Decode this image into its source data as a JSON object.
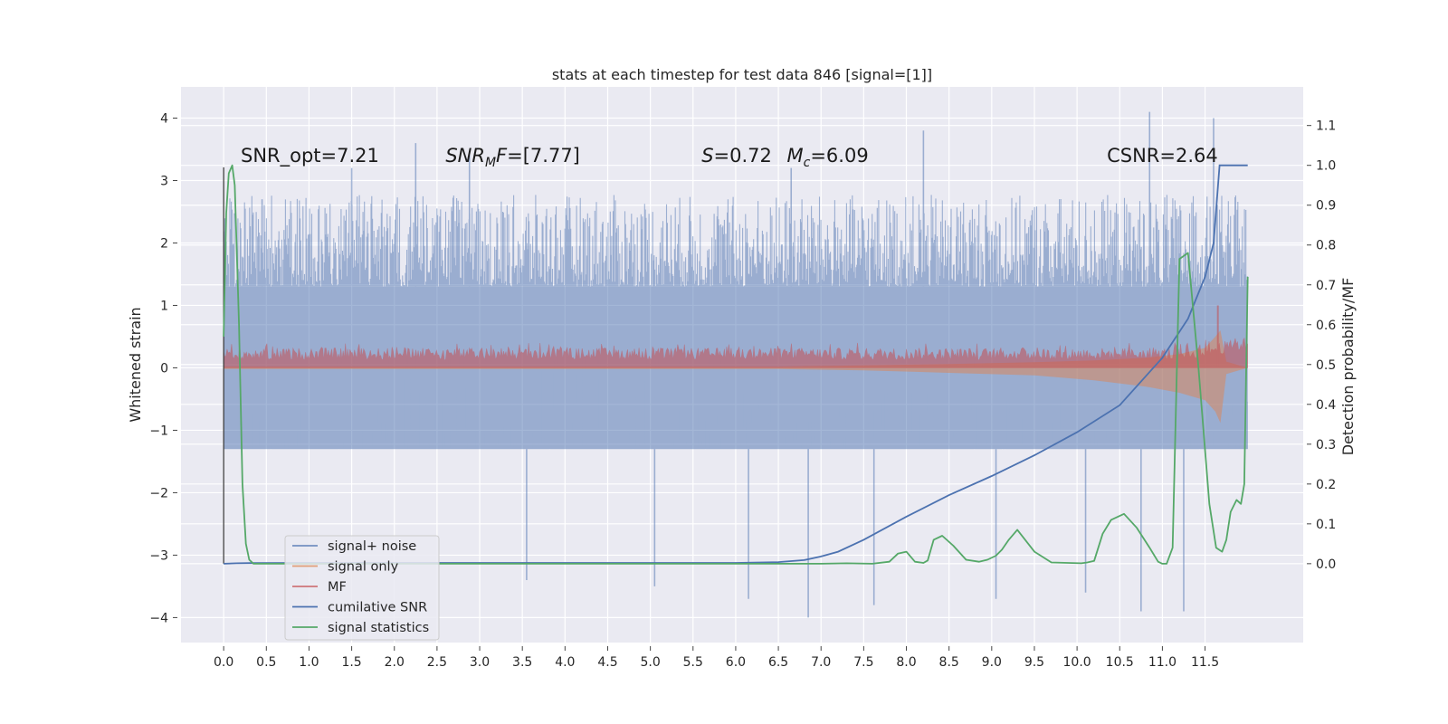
{
  "chart_data": {
    "type": "line",
    "title": "stats at each timestep for test data 846 [signal=[1]]",
    "xlabel": "",
    "ylabel_left": "Whitened strain",
    "ylabel_right": "Detection probability/MF",
    "xlim": [
      -0.5,
      12.65
    ],
    "ylim_left": [
      -4.4,
      4.5
    ],
    "ylim_right": [
      -0.198,
      1.197
    ],
    "x_ticks": [
      0.0,
      0.5,
      1.0,
      1.5,
      2.0,
      2.5,
      3.0,
      3.5,
      4.0,
      4.5,
      5.0,
      5.5,
      6.0,
      6.5,
      7.0,
      7.5,
      8.0,
      8.5,
      9.0,
      9.5,
      10.0,
      10.5,
      11.0,
      11.5
    ],
    "x_tick_labels": [
      "0.0",
      "0.5",
      "1.0",
      "1.5",
      "2.0",
      "2.5",
      "3.0",
      "3.5",
      "4.0",
      "4.5",
      "5.0",
      "5.5",
      "6.0",
      "6.5",
      "7.0",
      "7.5",
      "8.0",
      "8.5",
      "9.0",
      "9.5",
      "10.0",
      "10.5",
      "11.0",
      "11.5"
    ],
    "y_left_ticks": [
      -4,
      -3,
      -2,
      -1,
      0,
      1,
      2,
      3,
      4
    ],
    "y_left_tick_labels": [
      "−4",
      "−3",
      "−2",
      "−1",
      "0",
      "1",
      "2",
      "3",
      "4"
    ],
    "y_right_ticks": [
      0.0,
      0.1,
      0.2,
      0.3,
      0.4,
      0.5,
      0.6,
      0.7,
      0.8,
      0.9,
      1.0,
      1.1
    ],
    "y_right_tick_labels": [
      "0.0",
      "0.1",
      "0.2",
      "0.3",
      "0.4",
      "0.5",
      "0.6",
      "0.7",
      "0.8",
      "0.9",
      "1.0",
      "1.1"
    ],
    "grid": true,
    "legend_position": "bottom-left",
    "annotations": [
      {
        "text": "SNR_opt=7.21",
        "x": 0.2,
        "y": 3.3
      },
      {
        "text": "SNR_MF=[7.77]",
        "x": 2.6,
        "y": 3.3
      },
      {
        "text": "S=0.72",
        "x": 5.6,
        "y": 3.3
      },
      {
        "text": "M_c=6.09",
        "x": 6.6,
        "y": 3.3
      },
      {
        "text": "CSNR=2.64",
        "x": 10.35,
        "y": 3.3
      }
    ],
    "series": [
      {
        "name": "signal+ noise",
        "axis": "left",
        "color": "#4c72b0",
        "opacity": 0.5,
        "kind": "noise_band",
        "x_range": [
          0.0,
          12.0
        ],
        "envelope": {
          "core_upper": 1.3,
          "core_lower": -1.3,
          "typical_peak_upper": 2.7,
          "typical_peak_lower": -2.7
        },
        "outliers": [
          {
            "x": 0.45,
            "y": 2.7
          },
          {
            "x": 1.5,
            "y": 3.2
          },
          {
            "x": 2.25,
            "y": 3.6
          },
          {
            "x": 2.88,
            "y": 3.4
          },
          {
            "x": 3.55,
            "y": -3.4
          },
          {
            "x": 5.05,
            "y": -3.5
          },
          {
            "x": 6.15,
            "y": -3.7
          },
          {
            "x": 6.65,
            "y": 3.2
          },
          {
            "x": 6.85,
            "y": -4.0
          },
          {
            "x": 7.62,
            "y": -3.8
          },
          {
            "x": 8.2,
            "y": 3.8
          },
          {
            "x": 9.05,
            "y": -3.7
          },
          {
            "x": 10.1,
            "y": -3.6
          },
          {
            "x": 10.75,
            "y": -3.9
          },
          {
            "x": 10.85,
            "y": 4.1
          },
          {
            "x": 11.25,
            "y": -3.9
          },
          {
            "x": 11.6,
            "y": 4.0
          }
        ]
      },
      {
        "name": "signal only",
        "axis": "left",
        "color": "#dd8452",
        "opacity": 0.5,
        "kind": "chirp",
        "x": [
          0.0,
          6.5,
          7.5,
          8.5,
          9.5,
          10.2,
          10.8,
          11.2,
          11.5,
          11.62,
          11.68,
          11.75,
          12.0
        ],
        "upper": [
          0.02,
          0.02,
          0.04,
          0.06,
          0.09,
          0.12,
          0.16,
          0.22,
          0.32,
          0.5,
          0.6,
          0.1,
          0.0
        ],
        "lower": [
          -0.02,
          -0.02,
          -0.04,
          -0.08,
          -0.12,
          -0.2,
          -0.3,
          -0.4,
          -0.52,
          -0.7,
          -0.88,
          -0.1,
          0.0
        ]
      },
      {
        "name": "MF",
        "axis": "left",
        "color": "#c44e52",
        "opacity": 0.55,
        "kind": "band",
        "x_range": [
          0.0,
          12.0
        ],
        "lower": 0.0,
        "upper_typical": 0.22,
        "upper_peak": 0.4,
        "spike": {
          "x": 11.65,
          "y": 1.0
        }
      },
      {
        "name": "cumilative SNR",
        "axis": "right",
        "color": "#4c72b0",
        "opacity": 1.0,
        "x": [
          0.0,
          0.15,
          0.3,
          1.0,
          3.0,
          5.0,
          6.0,
          6.5,
          6.8,
          7.0,
          7.2,
          7.5,
          8.0,
          8.5,
          9.0,
          9.5,
          10.0,
          10.5,
          11.0,
          11.3,
          11.5,
          11.6,
          11.67,
          11.8,
          12.0
        ],
        "y": [
          0.0,
          0.001,
          0.0015,
          0.002,
          0.002,
          0.002,
          0.002,
          0.004,
          0.009,
          0.018,
          0.03,
          0.06,
          0.118,
          0.172,
          0.22,
          0.272,
          0.33,
          0.398,
          0.517,
          0.615,
          0.72,
          0.805,
          1.0,
          1.0,
          1.0
        ],
        "lead_in": {
          "x": 0.0,
          "y_from": 0.0,
          "y_to": 0.995
        }
      },
      {
        "name": "signal statistics",
        "axis": "right",
        "color": "#55a868",
        "opacity": 1.0,
        "x": [
          0.0,
          0.03,
          0.06,
          0.1,
          0.13,
          0.18,
          0.22,
          0.26,
          0.3,
          0.35,
          0.5,
          1.0,
          2.0,
          3.0,
          4.0,
          5.0,
          6.0,
          7.0,
          7.3,
          7.6,
          7.8,
          7.9,
          8.0,
          8.1,
          8.2,
          8.25,
          8.32,
          8.42,
          8.55,
          8.7,
          8.85,
          8.95,
          9.05,
          9.12,
          9.2,
          9.3,
          9.5,
          9.7,
          9.9,
          10.05,
          10.12,
          10.2,
          10.3,
          10.4,
          10.55,
          10.7,
          10.85,
          10.95,
          11.0,
          11.05,
          11.12,
          11.2,
          11.3,
          11.42,
          11.55,
          11.63,
          11.7,
          11.75,
          11.8,
          11.87,
          11.92,
          11.96,
          12.0
        ],
        "y": [
          0.57,
          0.88,
          0.98,
          1.0,
          0.95,
          0.6,
          0.2,
          0.05,
          0.01,
          0.0,
          0.0,
          0.0,
          0.0,
          0.0,
          0.0,
          0.0,
          0.0,
          0.0,
          0.001,
          0.0,
          0.005,
          0.025,
          0.03,
          0.005,
          0.002,
          0.008,
          0.06,
          0.07,
          0.045,
          0.01,
          0.005,
          0.01,
          0.02,
          0.035,
          0.06,
          0.085,
          0.03,
          0.003,
          0.002,
          0.001,
          0.003,
          0.007,
          0.075,
          0.11,
          0.125,
          0.09,
          0.04,
          0.005,
          0.0,
          0.0,
          0.04,
          0.765,
          0.78,
          0.5,
          0.15,
          0.04,
          0.03,
          0.06,
          0.13,
          0.16,
          0.15,
          0.2,
          0.72
        ]
      }
    ]
  }
}
